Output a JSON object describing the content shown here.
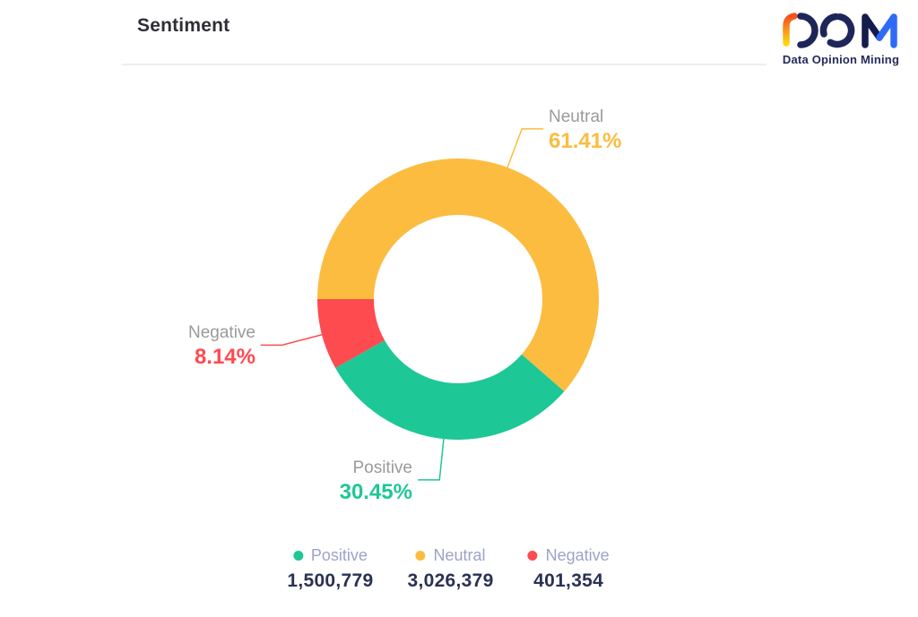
{
  "header": {
    "title": "Sentiment"
  },
  "logo": {
    "text": "DOM",
    "subtitle": "Data Opinion Mining",
    "colors": {
      "navy": "#1E2659",
      "blue": "#2E6BF6",
      "orange": "#F4511E",
      "yellow": "#FFD317"
    }
  },
  "chart_data": {
    "type": "pie",
    "title": "Sentiment",
    "donut": true,
    "start_angle_deg": 180,
    "direction": "clockwise",
    "order": [
      "Neutral",
      "Positive",
      "Negative"
    ],
    "legend_position": "bottom",
    "series": [
      {
        "name": "Positive",
        "value": 1500779,
        "percent": 30.45,
        "percent_label": "30.45%",
        "count_label": "1,500,779",
        "color": "#1EC796"
      },
      {
        "name": "Neutral",
        "value": 3026379,
        "percent": 61.41,
        "percent_label": "61.41%",
        "count_label": "3,026,379",
        "color": "#FBBC40"
      },
      {
        "name": "Negative",
        "value": 401354,
        "percent": 8.14,
        "percent_label": "8.14%",
        "count_label": "401,354",
        "color": "#FD4B50"
      }
    ],
    "label_color": "#9A9A9A"
  }
}
